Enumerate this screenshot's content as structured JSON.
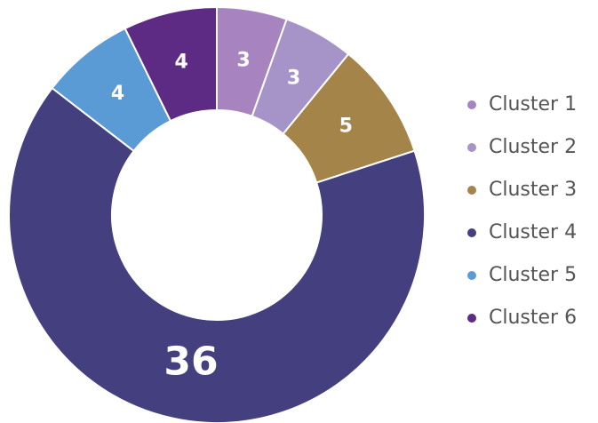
{
  "chart_data": {
    "type": "donut",
    "categories": [
      "Cluster 1",
      "Cluster 2",
      "Cluster 3",
      "Cluster 4",
      "Cluster 5",
      "Cluster 6"
    ],
    "values": [
      3,
      3,
      5,
      36,
      4,
      4
    ],
    "colors": [
      "#a784bf",
      "#a694c8",
      "#a5844a",
      "#443f7e",
      "#5b9bd5",
      "#5e2b84"
    ],
    "legend": "right"
  }
}
